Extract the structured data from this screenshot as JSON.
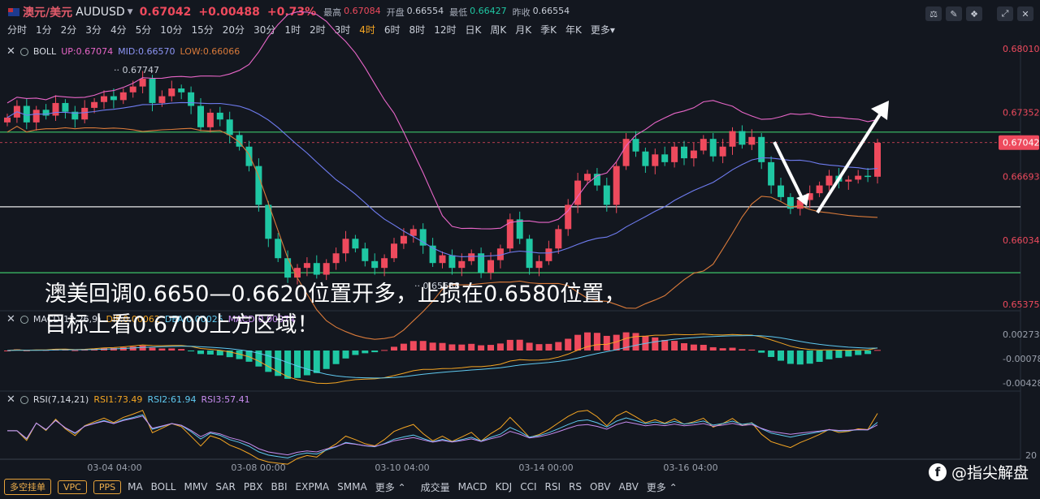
{
  "header": {
    "symbol_name": "澳元/美元",
    "symbol_code": "AUDUSD",
    "price": "0.67042",
    "change": "+0.00488",
    "change_pct": "+0.73%",
    "stats": [
      {
        "label": "最高",
        "value": "0.67084",
        "color": "#ee4a5d"
      },
      {
        "label": "开盘",
        "value": "0.66554",
        "color": "#c9ced8"
      },
      {
        "label": "最低",
        "value": "0.66427",
        "color": "#1fc7a3"
      },
      {
        "label": "昨收",
        "value": "0.66554",
        "color": "#c9ced8"
      }
    ],
    "tool_icons": [
      "settings-icon",
      "draw-icon",
      "compare-icon",
      "fullscreen-icon",
      "close-icon"
    ]
  },
  "periods": [
    "分时",
    "1分",
    "2分",
    "3分",
    "4分",
    "5分",
    "10分",
    "15分",
    "20分",
    "30分",
    "1时",
    "2时",
    "3时",
    "4时",
    "6时",
    "8时",
    "12时",
    "日K",
    "周K",
    "月K",
    "季K",
    "年K",
    "更多"
  ],
  "active_period": "4时",
  "colors": {
    "up": "#ee4a5d",
    "down": "#1fc7a3",
    "up_line": "#e866c8",
    "mid_line": "#6f7cf0",
    "low_line": "#d97a3a",
    "green_line": "#3cc46a",
    "white_line": "#e8e8e8"
  },
  "indicators": {
    "boll": {
      "name": "BOLL",
      "up": "UP:0.67074",
      "mid": "MID:0.66570",
      "low": "LOW:0.66066"
    },
    "macd": {
      "name": "MACD(12,26,9)",
      "dif": "DIF:0.00062",
      "dea": "DEA:0.00025",
      "macd": "MACD:0.00074"
    },
    "rsi": {
      "name": "RSI(7,14,21)",
      "rsi1": "RSI1:73.49",
      "rsi2": "RSI2:61.94",
      "rsi3": "RSI3:57.41"
    }
  },
  "price_axis": [
    "0.68010",
    "0.67352",
    "0.66693",
    "0.66034",
    "0.65375"
  ],
  "current_price_tag": "0.67042",
  "macd_axis": [
    "0.00273",
    "-0.00078",
    "-0.00428"
  ],
  "rsi_axis": [
    "20"
  ],
  "chart_data": {
    "type": "candlestick",
    "x_ticks": [
      "03-04 04:00",
      "03-08 00:00",
      "03-10 04:00",
      "03-14 00:00",
      "03-16 04:00"
    ],
    "annotations": {
      "high_marker": "0.67747",
      "low_marker": "0.65638"
    },
    "key_levels": [
      0.6715,
      0.6638,
      0.657
    ]
  },
  "annotation_text": [
    "澳美回调0.6650—0.6620位置开多，止损在0.6580位置，",
    "目标上看0.6700上方区域！"
  ],
  "bottom": {
    "pills": [
      "多空挂单",
      "VPC",
      "PPS"
    ],
    "main_indicators": [
      "MA",
      "BOLL",
      "MMV",
      "SAR",
      "PBX",
      "BBI",
      "EXPMA",
      "SMMA",
      "更多"
    ],
    "sub_indicators": [
      "成交量",
      "MACD",
      "KDJ",
      "CCI",
      "RSI",
      "RS",
      "OBV",
      "ABV",
      "更多"
    ]
  },
  "brand": "@指尖解盘"
}
